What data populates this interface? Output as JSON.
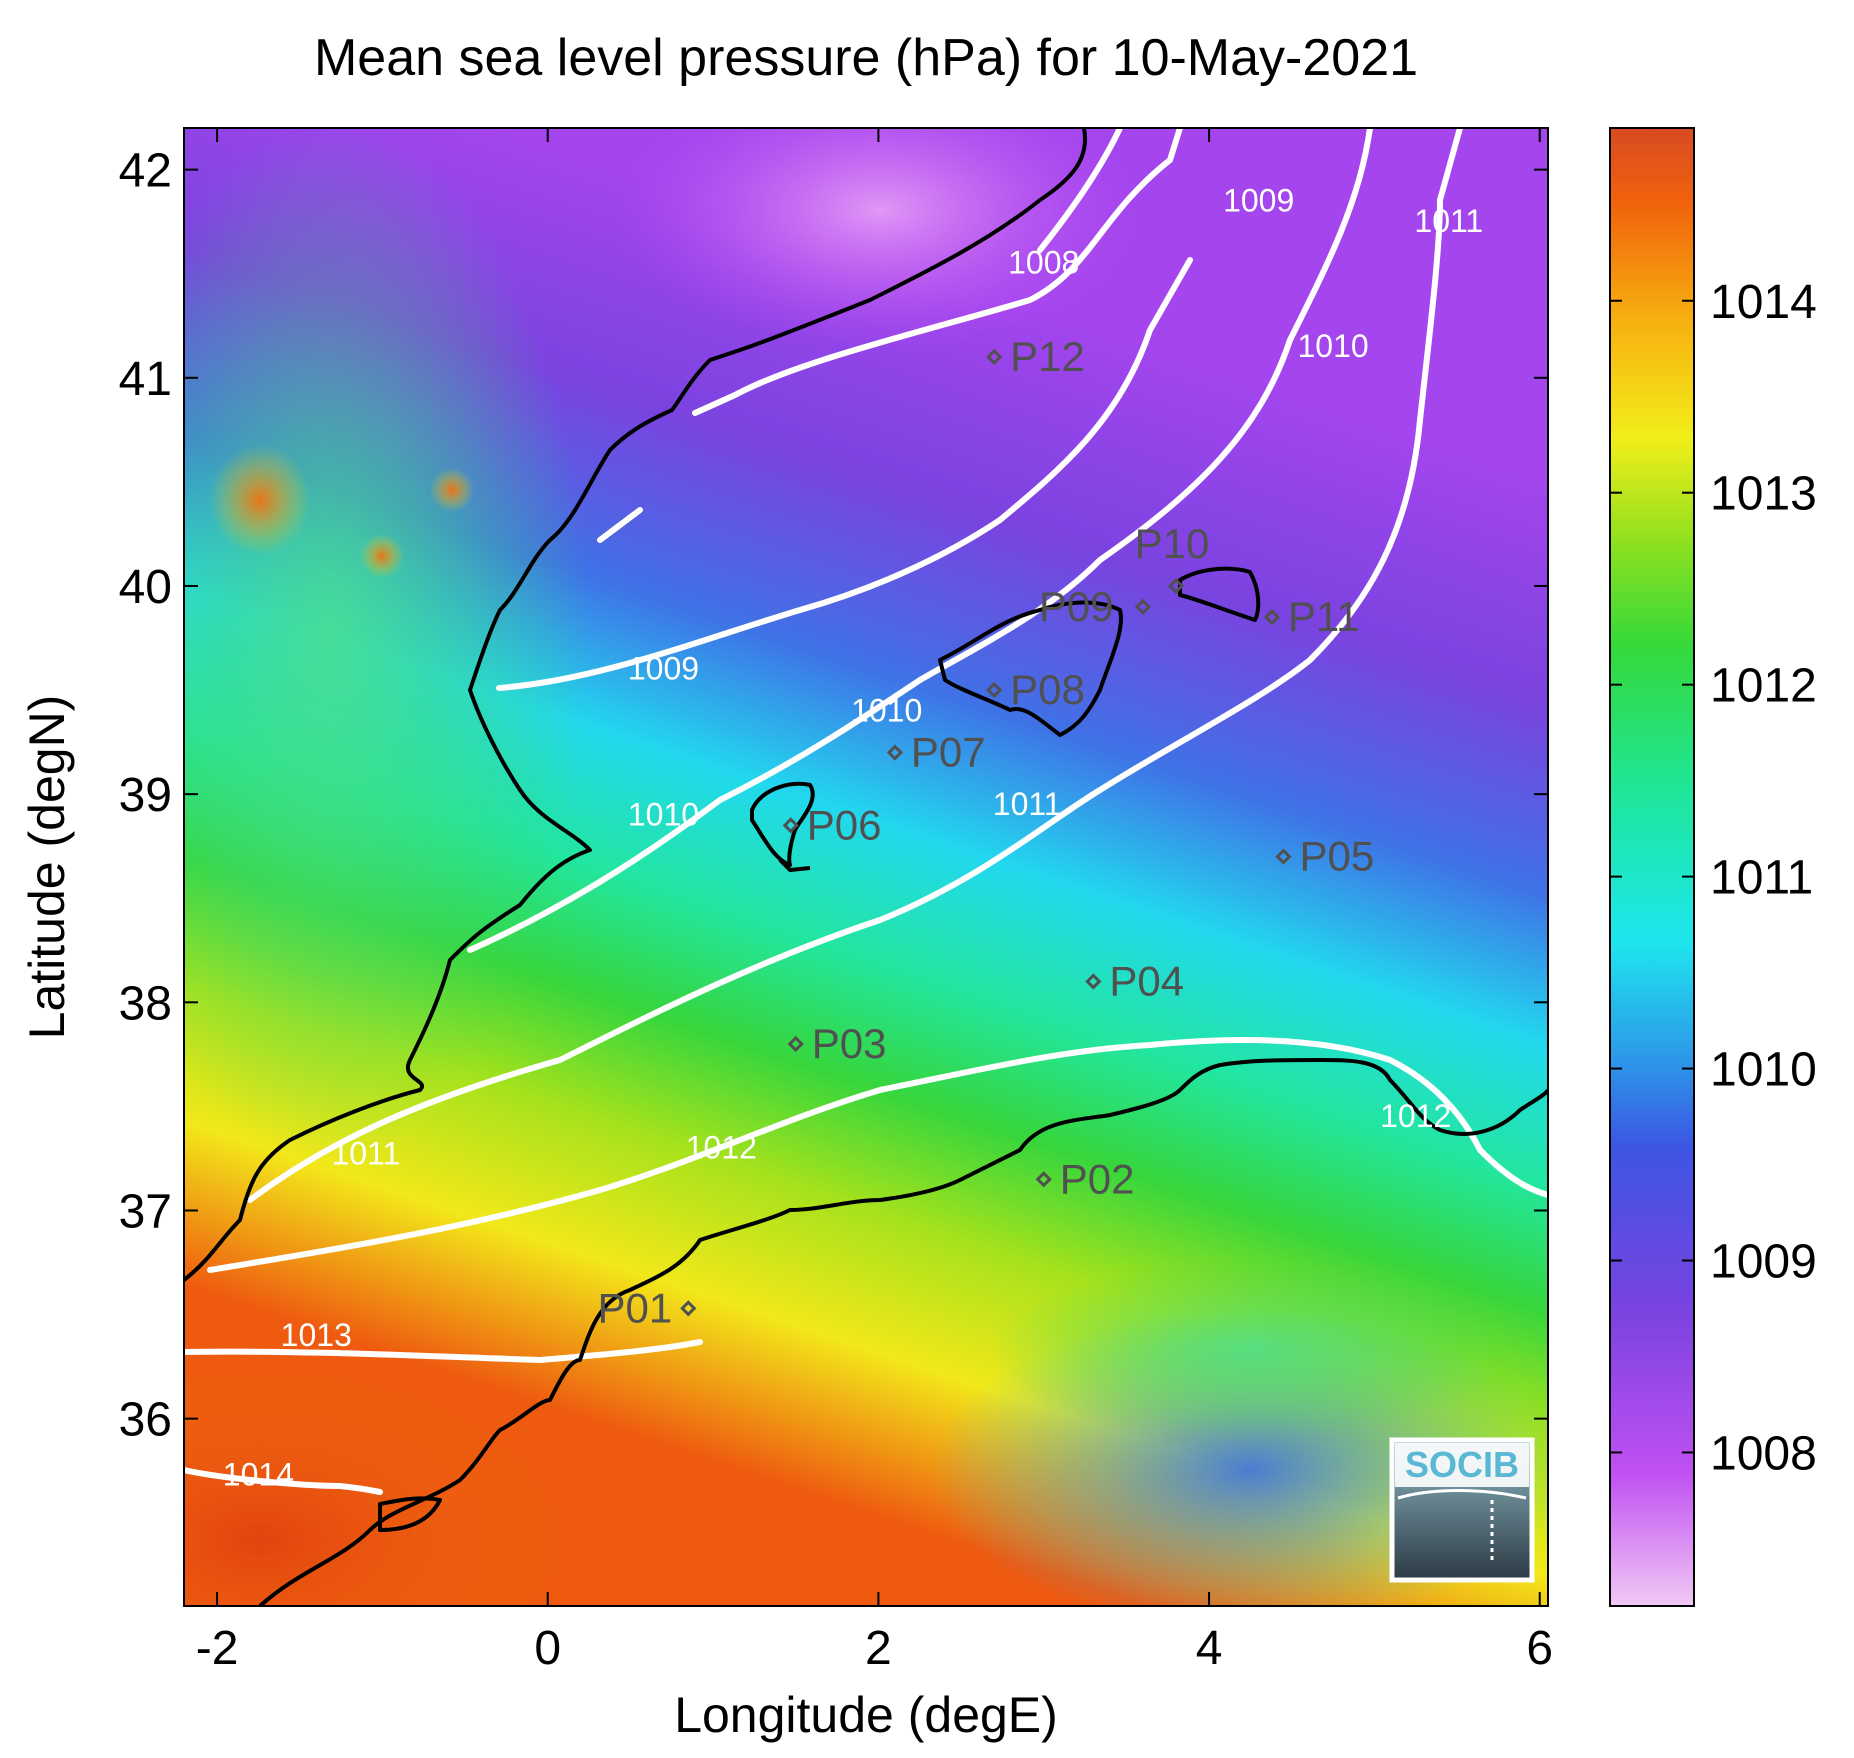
{
  "title": "Mean sea level pressure (hPa) for 10-May-2021",
  "axes": {
    "xlabel": "Longitude (degE)",
    "ylabel": "Latitude (degN)",
    "xlim": [
      -2.2,
      6.05
    ],
    "ylim": [
      35.1,
      42.2
    ],
    "xticks": [
      -2,
      0,
      2,
      4,
      6
    ],
    "xtick_labels": [
      "-2",
      "0",
      "2",
      "4",
      "6"
    ],
    "yticks": [
      36,
      37,
      38,
      39,
      40,
      41,
      42
    ],
    "ytick_labels": [
      "36",
      "37",
      "38",
      "39",
      "40",
      "41",
      "42"
    ]
  },
  "colorbar": {
    "range": [
      1007.2,
      1014.9
    ],
    "ticks": [
      1008,
      1009,
      1010,
      1011,
      1012,
      1013,
      1014
    ],
    "tick_labels": [
      "1008",
      "1009",
      "1010",
      "1011",
      "1012",
      "1013",
      "1014"
    ],
    "colors": [
      "#f1c9f4",
      "#c050f2",
      "#7a43e0",
      "#2f6fe6",
      "#1ee6ee",
      "#1ee69a",
      "#35d93a",
      "#8fe01f",
      "#f2ee1a",
      "#f7b010",
      "#f0620c",
      "#d84a22"
    ]
  },
  "logo": {
    "text": "SOCIB",
    "color": "#5bb8d4"
  },
  "colors": {
    "contour": "#ffffff",
    "coast": "#000000",
    "point": "#505050"
  },
  "chart_data": {
    "type": "heatmap",
    "title": "Mean sea level pressure (hPa) for 10-May-2021",
    "xlabel": "Longitude (degE)",
    "ylabel": "Latitude (degN)",
    "units": "hPa",
    "contour_labels": [
      {
        "text": "1008",
        "lon": 3.0,
        "lat": 41.5
      },
      {
        "text": "1009",
        "lon": 4.3,
        "lat": 41.8
      },
      {
        "text": "1009",
        "lon": 0.7,
        "lat": 39.55
      },
      {
        "text": "1010",
        "lon": 4.75,
        "lat": 41.1
      },
      {
        "text": "1010",
        "lon": 2.05,
        "lat": 39.35
      },
      {
        "text": "1010",
        "lon": 0.7,
        "lat": 38.85
      },
      {
        "text": "1011",
        "lon": 5.45,
        "lat": 41.7
      },
      {
        "text": "1011",
        "lon": 2.9,
        "lat": 38.9
      },
      {
        "text": "1011",
        "lon": -1.1,
        "lat": 37.22
      },
      {
        "text": "1012",
        "lon": 1.05,
        "lat": 37.25
      },
      {
        "text": "1012",
        "lon": 5.25,
        "lat": 37.4
      },
      {
        "text": "1013",
        "lon": -1.4,
        "lat": 36.35
      },
      {
        "text": "1014",
        "lon": -1.75,
        "lat": 35.68
      }
    ],
    "points": [
      {
        "label": "P01",
        "lon": 0.85,
        "lat": 36.53
      },
      {
        "label": "P02",
        "lon": 3.0,
        "lat": 37.15
      },
      {
        "label": "P03",
        "lon": 1.5,
        "lat": 37.8
      },
      {
        "label": "P04",
        "lon": 3.3,
        "lat": 38.1
      },
      {
        "label": "P05",
        "lon": 4.45,
        "lat": 38.7
      },
      {
        "label": "P06",
        "lon": 1.47,
        "lat": 38.85
      },
      {
        "label": "P07",
        "lon": 2.1,
        "lat": 39.2
      },
      {
        "label": "P08",
        "lon": 2.7,
        "lat": 39.5
      },
      {
        "label": "P09",
        "lon": 3.6,
        "lat": 39.9
      },
      {
        "label": "P10",
        "lon": 3.8,
        "lat": 40.0
      },
      {
        "label": "P11",
        "lon": 4.38,
        "lat": 39.85
      },
      {
        "label": "P12",
        "lon": 2.7,
        "lat": 41.1
      }
    ]
  }
}
